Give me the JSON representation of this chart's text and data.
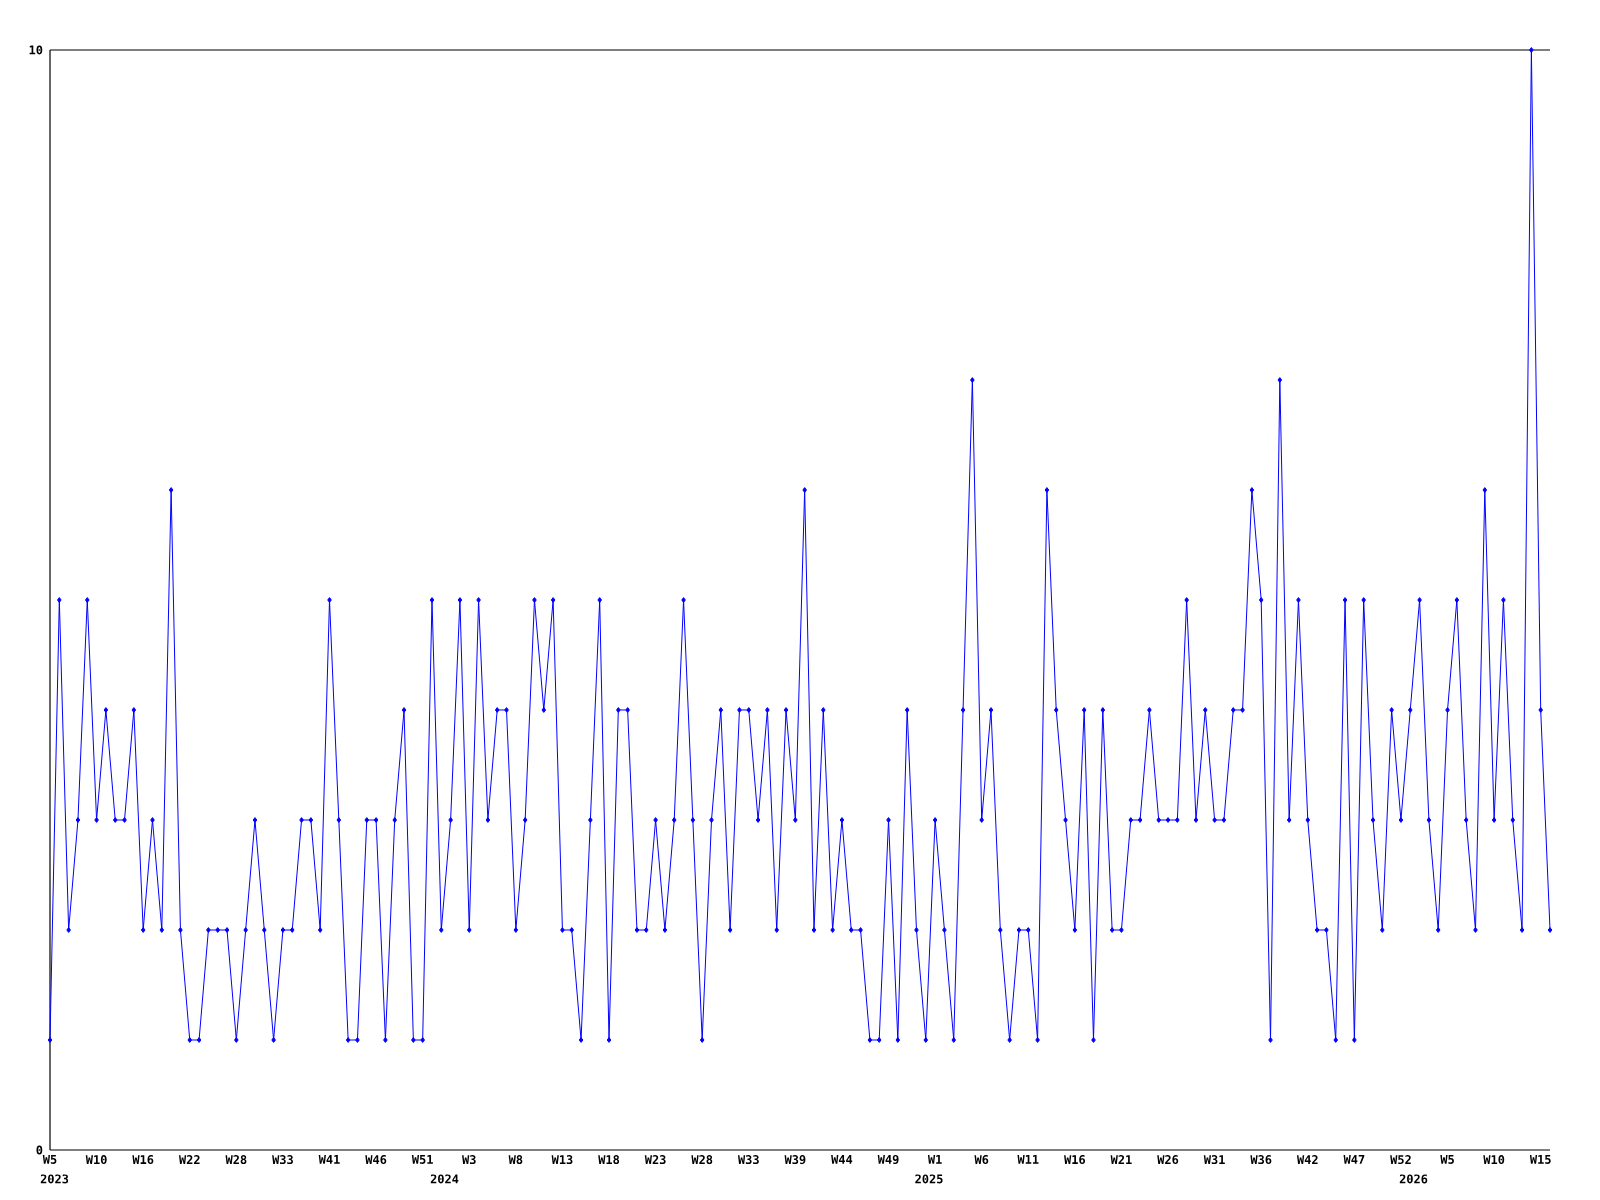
{
  "chart_data": {
    "type": "line",
    "categories": [
      "W5",
      null,
      null,
      null,
      null,
      "W10",
      null,
      null,
      null,
      null,
      "W16",
      null,
      null,
      null,
      null,
      "W22",
      null,
      null,
      null,
      null,
      "W28",
      null,
      null,
      null,
      null,
      "W33",
      null,
      null,
      null,
      null,
      "W41",
      null,
      null,
      null,
      null,
      "W46",
      null,
      null,
      null,
      null,
      "W51",
      null,
      null,
      null,
      null,
      "W3",
      null,
      null,
      null,
      null,
      "W8",
      null,
      null,
      null,
      null,
      "W13",
      null,
      null,
      null,
      null,
      "W18",
      null,
      null,
      null,
      null,
      "W23",
      null,
      null,
      null,
      null,
      "W28",
      null,
      null,
      null,
      null,
      "W33",
      null,
      null,
      null,
      null,
      "W39",
      null,
      null,
      null,
      null,
      "W44",
      null,
      null,
      null,
      null,
      "W49",
      null,
      null,
      null,
      null,
      "W1",
      null,
      null,
      null,
      null,
      "W6",
      null,
      null,
      null,
      null,
      "W11",
      null,
      null,
      null,
      null,
      "W16",
      null,
      null,
      null,
      null,
      "W21",
      null,
      null,
      null,
      null,
      "W26",
      null,
      null,
      null,
      null,
      "W31",
      null,
      null,
      null,
      null,
      "W36",
      null,
      null,
      null,
      null,
      "W42",
      null,
      null,
      null,
      null,
      "W47",
      null,
      null,
      null,
      null,
      "W52",
      null,
      null,
      null,
      null,
      "W5",
      null,
      null,
      null,
      null,
      "W10",
      null,
      null,
      null,
      null,
      "W15",
      null
    ],
    "values": [
      1,
      5,
      2,
      3,
      5,
      3,
      4,
      3,
      3,
      4,
      2,
      3,
      2,
      6,
      2,
      1,
      1,
      2,
      2,
      2,
      1,
      2,
      3,
      2,
      1,
      2,
      2,
      3,
      3,
      2,
      5,
      3,
      1,
      1,
      3,
      3,
      1,
      3,
      4,
      1,
      1,
      5,
      2,
      3,
      5,
      2,
      5,
      3,
      4,
      4,
      2,
      3,
      5,
      4,
      5,
      2,
      2,
      1,
      3,
      5,
      1,
      4,
      4,
      2,
      2,
      3,
      2,
      3,
      5,
      3,
      1,
      3,
      4,
      2,
      4,
      4,
      3,
      4,
      2,
      4,
      3,
      6,
      2,
      4,
      2,
      3,
      2,
      2,
      1,
      1,
      3,
      1,
      4,
      2,
      1,
      3,
      2,
      1,
      4,
      7,
      3,
      4,
      2,
      1,
      2,
      2,
      1,
      6,
      4,
      3,
      2,
      4,
      1,
      4,
      2,
      2,
      3,
      3,
      4,
      3,
      3,
      3,
      5,
      3,
      4,
      3,
      3,
      4,
      4,
      6,
      5,
      1,
      7,
      3,
      5,
      3,
      2,
      2,
      1,
      5,
      1,
      5,
      3,
      2,
      4,
      3,
      4,
      5,
      3,
      2,
      4,
      5,
      3,
      2,
      6,
      3,
      5,
      3,
      2,
      10,
      4,
      2
    ],
    "color": "#0000ff",
    "marker": "diamond",
    "ylim": [
      0,
      10
    ],
    "yticks": [
      0,
      10
    ],
    "annotations": [
      "2023",
      "2024",
      "2025",
      "2026"
    ]
  }
}
